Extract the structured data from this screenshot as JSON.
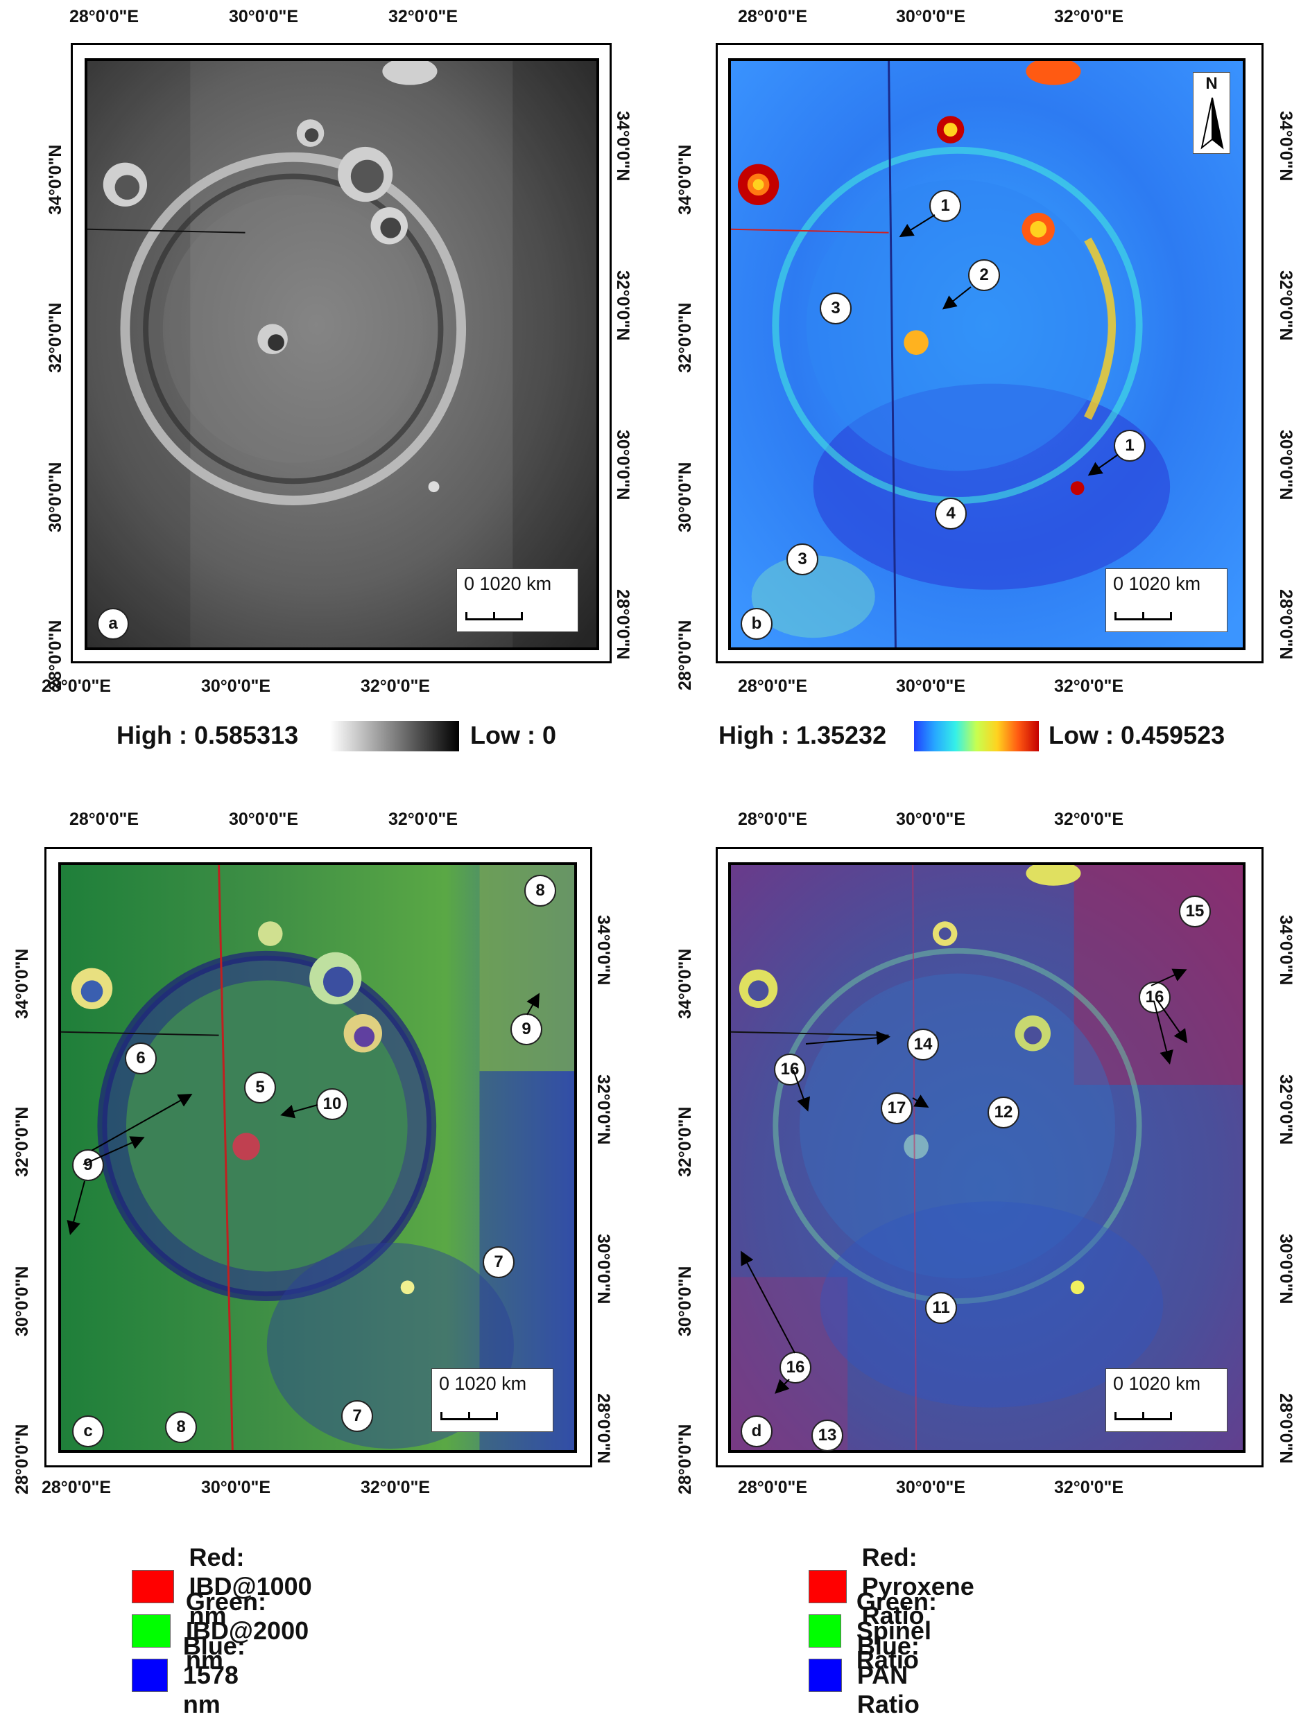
{
  "axes": {
    "lon_labels": [
      "28°0'0\"E",
      "30°0'0\"E",
      "32°0'0\"E"
    ],
    "lat_labels": [
      "34°0'0\"N",
      "32°0'0\"N",
      "30°0'0\"N",
      "28°0'0\"N"
    ]
  },
  "panels": [
    {
      "letter": "a",
      "scale_text": "0 1020 km",
      "markers": []
    },
    {
      "letter": "b",
      "scale_text": "0 1020 km",
      "markers": [
        "1",
        "2",
        "3",
        "1",
        "4",
        "3"
      ],
      "north_label": "N"
    },
    {
      "letter": "c",
      "scale_text": "0 1020 km",
      "markers": [
        "8",
        "9",
        "6",
        "5",
        "10",
        "9",
        "7",
        "7",
        "8"
      ]
    },
    {
      "letter": "d",
      "scale_text": "0 1020 km",
      "markers": [
        "15",
        "16",
        "14",
        "16",
        "17",
        "12",
        "11",
        "16",
        "13"
      ]
    }
  ],
  "colorbars": {
    "a": {
      "high": "High : 0.585313",
      "low": "Low : 0",
      "colors": [
        "#ffffff",
        "#000000"
      ]
    },
    "b": {
      "high": "High : 1.35232",
      "low": "Low : 0.459523",
      "colors": [
        "#1f3fff",
        "#27a8ff",
        "#35f0e8",
        "#c7ff50",
        "#ffd21f",
        "#ff5a12",
        "#c40000"
      ]
    }
  },
  "legend_c": [
    {
      "label": "Red: IBD@1000 nm",
      "color": "#ff0000"
    },
    {
      "label": "Green: IBD@2000 nm",
      "color": "#00ff00"
    },
    {
      "label": "Blue: 1578 nm",
      "color": "#0000ff"
    }
  ],
  "legend_d": [
    {
      "label": "Red: Pyroxene Ratio",
      "color": "#ff0000"
    },
    {
      "label": "Green: Spinel Ratio",
      "color": "#00ff00"
    },
    {
      "label": "Blue: PAN Ratio",
      "color": "#0000ff"
    }
  ]
}
